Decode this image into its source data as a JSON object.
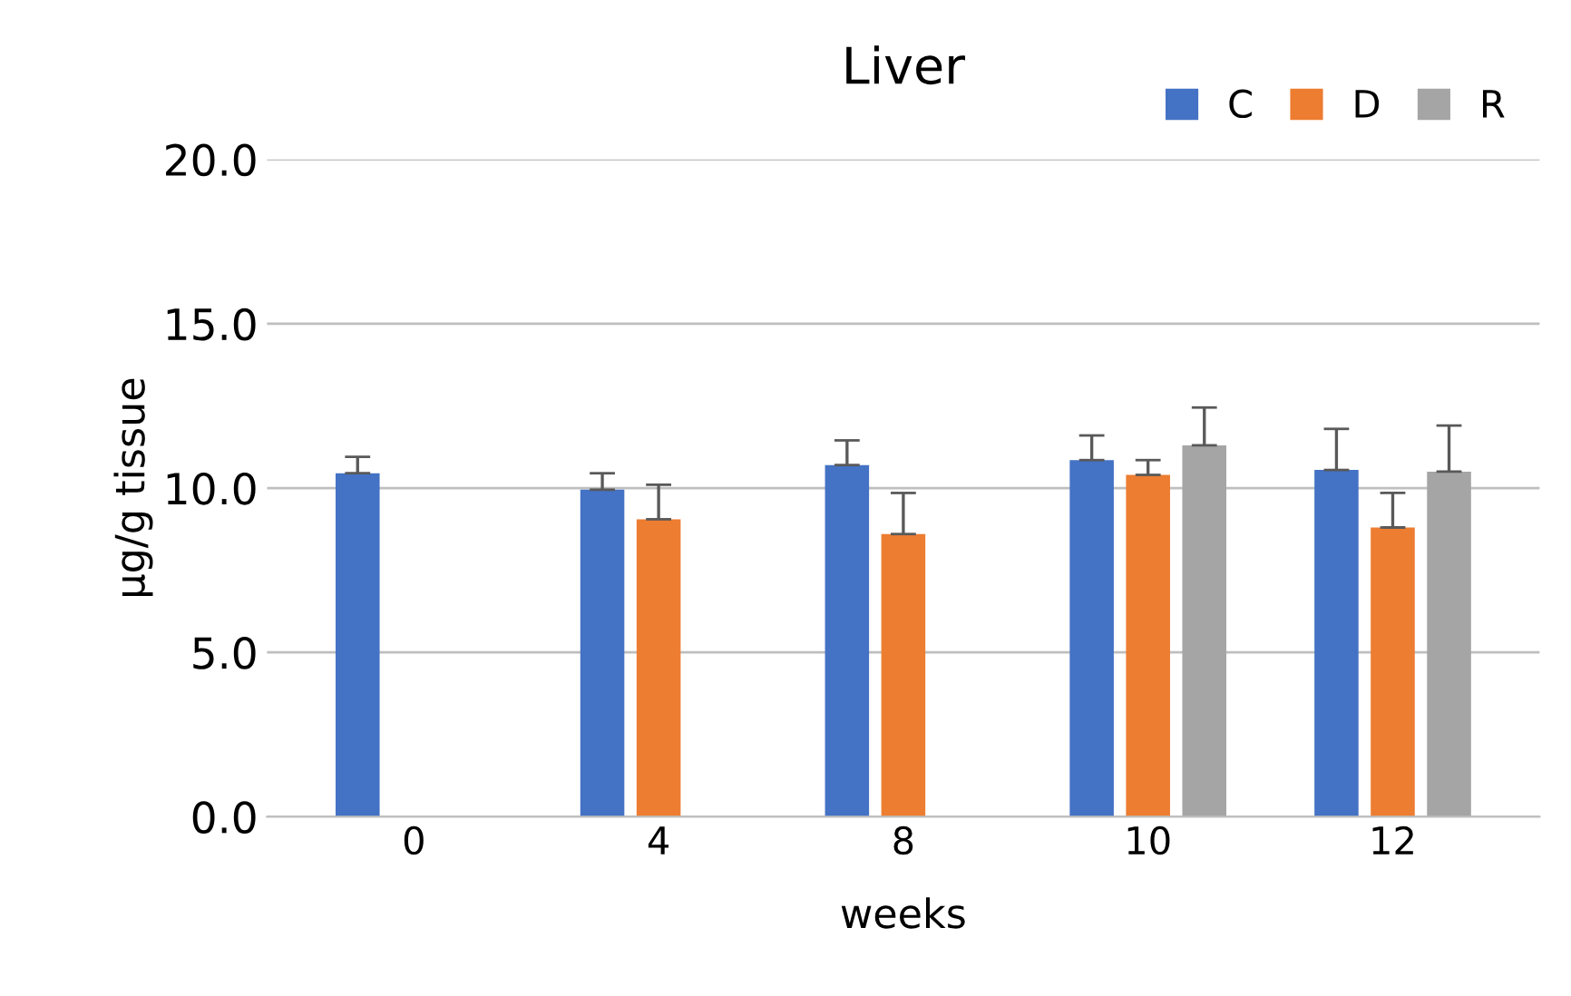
{
  "chart_data": {
    "type": "bar",
    "title": "Liver",
    "xlabel": "weeks",
    "ylabel": "µg/g tissue",
    "categories": [
      "0",
      "4",
      "8",
      "10",
      "12"
    ],
    "series": [
      {
        "name": "C",
        "color": "#4472c4",
        "values": [
          10.45,
          9.95,
          10.7,
          10.85,
          10.55
        ],
        "errors": [
          [
            10.45,
            10.95
          ],
          [
            9.95,
            10.45
          ],
          [
            10.7,
            11.45
          ],
          [
            10.85,
            11.6
          ],
          [
            10.55,
            11.8
          ]
        ]
      },
      {
        "name": "D",
        "color": "#ed7d31",
        "values": [
          null,
          9.05,
          8.6,
          10.4,
          8.8
        ],
        "errors": [
          null,
          [
            9.05,
            10.1
          ],
          [
            8.6,
            9.85
          ],
          [
            10.4,
            10.85
          ],
          [
            8.8,
            9.85
          ]
        ]
      },
      {
        "name": "R",
        "color": "#a5a5a5",
        "values": [
          null,
          null,
          null,
          11.3,
          10.5
        ],
        "errors": [
          null,
          null,
          null,
          [
            11.3,
            12.45
          ],
          [
            10.5,
            11.9
          ]
        ]
      }
    ],
    "ylim": [
      0,
      20
    ],
    "yticks": [
      {
        "value": 0,
        "label": "0.0"
      },
      {
        "value": 5,
        "label": "5.0"
      },
      {
        "value": 10,
        "label": "10.0"
      },
      {
        "value": 15,
        "label": "15.0"
      },
      {
        "value": 20,
        "label": "20.0"
      }
    ],
    "grid": "y",
    "legend": "top right"
  }
}
